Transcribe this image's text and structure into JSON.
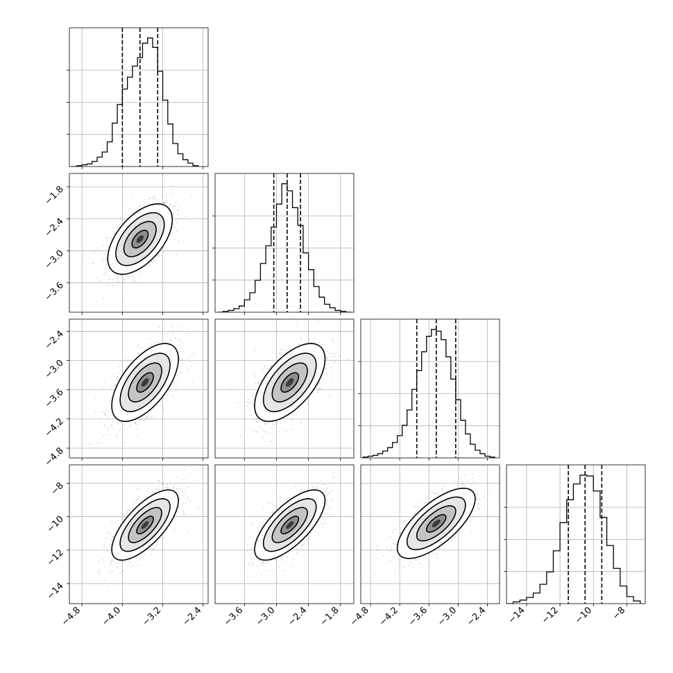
{
  "chart_data": {
    "type": "corner",
    "title": "",
    "parameters": [
      "",
      "",
      "",
      ""
    ],
    "ranges": [
      [
        -5.05,
        -2.3
      ],
      [
        -4.15,
        -1.55
      ],
      [
        -5.0,
        -2.15
      ],
      [
        -15.2,
        -6.9
      ]
    ],
    "ticks": [
      [
        -4.8,
        -4.0,
        -3.2,
        -2.4
      ],
      [
        -3.6,
        -3.0,
        -2.4,
        -1.8
      ],
      [
        -4.8,
        -4.2,
        -3.6,
        -3.0,
        -2.4
      ],
      [
        -14,
        -12,
        -10,
        -8
      ]
    ],
    "tick_labels": [
      [
        "−4.8",
        "−4.0",
        "−3.2",
        "−2.4"
      ],
      [
        "−3.6",
        "−3.0",
        "−2.4",
        "−1.8"
      ],
      [
        "−4.8",
        "−4.2",
        "−3.6",
        "−3.0",
        "−2.4"
      ],
      [
        "−14",
        "−12",
        "−10",
        "−8"
      ]
    ],
    "quantiles": [
      [
        -4.0,
        -3.65,
        -3.3
      ],
      [
        -3.05,
        -2.8,
        -2.55
      ],
      [
        -3.85,
        -3.45,
        -3.05
      ],
      [
        -11.5,
        -10.5,
        -9.5
      ]
    ],
    "histograms": [
      {
        "x": [
          -4.95,
          -4.85,
          -4.75,
          -4.65,
          -4.55,
          -4.45,
          -4.35,
          -4.25,
          -4.15,
          -4.05,
          -3.95,
          -3.85,
          -3.75,
          -3.65,
          -3.55,
          -3.45,
          -3.35,
          -3.25,
          -3.15,
          -3.05,
          -2.95,
          -2.85,
          -2.75,
          -2.65,
          -2.55
        ],
        "counts": [
          0,
          1,
          2,
          3,
          6,
          11,
          17,
          29,
          51,
          73,
          91,
          105,
          118,
          128,
          145,
          151,
          140,
          112,
          78,
          50,
          27,
          15,
          8,
          4,
          1
        ]
      },
      {
        "x": [
          -4.05,
          -3.95,
          -3.85,
          -3.75,
          -3.65,
          -3.55,
          -3.45,
          -3.35,
          -3.25,
          -3.15,
          -3.05,
          -2.95,
          -2.85,
          -2.75,
          -2.65,
          -2.55,
          -2.45,
          -2.35,
          -2.25,
          -2.15,
          -2.05,
          -1.95,
          -1.85,
          -1.75,
          -1.65
        ],
        "counts": [
          0,
          1,
          2,
          4,
          7,
          14,
          22,
          36,
          55,
          75,
          96,
          122,
          145,
          137,
          118,
          98,
          67,
          48,
          29,
          17,
          9,
          5,
          2,
          1,
          0
        ]
      },
      {
        "x": [
          -4.9,
          -4.8,
          -4.7,
          -4.6,
          -4.5,
          -4.4,
          -4.3,
          -4.2,
          -4.1,
          -4.0,
          -3.9,
          -3.8,
          -3.7,
          -3.6,
          -3.5,
          -3.4,
          -3.3,
          -3.2,
          -3.1,
          -3.0,
          -2.9,
          -2.8,
          -2.7,
          -2.6,
          -2.5,
          -2.4,
          -2.3
        ],
        "counts": [
          1,
          2,
          3,
          5,
          8,
          12,
          18,
          26,
          38,
          56,
          80,
          102,
          124,
          142,
          150,
          148,
          138,
          118,
          92,
          68,
          44,
          28,
          16,
          9,
          5,
          2,
          1
        ]
      },
      {
        "x": [
          -15.0,
          -14.6,
          -14.2,
          -13.8,
          -13.4,
          -13.0,
          -12.6,
          -12.2,
          -11.8,
          -11.4,
          -11.0,
          -10.6,
          -10.2,
          -9.8,
          -9.4,
          -9.0,
          -8.6,
          -8.2,
          -7.8,
          -7.4
        ],
        "counts": [
          0,
          2,
          4,
          7,
          12,
          22,
          36,
          60,
          92,
          118,
          136,
          146,
          145,
          128,
          98,
          66,
          40,
          20,
          8,
          3
        ]
      }
    ],
    "pairs": [
      {
        "row": 1,
        "col": 0,
        "mean": [
          -3.65,
          -2.78
        ],
        "sigma": [
          0.32,
          0.33
        ],
        "rho": 0.55
      },
      {
        "row": 2,
        "col": 0,
        "mean": [
          -3.55,
          -3.45
        ],
        "sigma": [
          0.33,
          0.4
        ],
        "rho": 0.6
      },
      {
        "row": 2,
        "col": 1,
        "mean": [
          -2.75,
          -3.45
        ],
        "sigma": [
          0.33,
          0.4
        ],
        "rho": 0.6
      },
      {
        "row": 3,
        "col": 0,
        "mean": [
          -3.55,
          -10.5
        ],
        "sigma": [
          0.33,
          1.05
        ],
        "rho": 0.7
      },
      {
        "row": 3,
        "col": 1,
        "mean": [
          -2.75,
          -10.5
        ],
        "sigma": [
          0.33,
          1.05
        ],
        "rho": 0.7
      },
      {
        "row": 3,
        "col": 2,
        "mean": [
          -3.45,
          -10.4
        ],
        "sigma": [
          0.4,
          1.05
        ],
        "rho": 0.7
      }
    ],
    "contour_levels_sigma": [
      0.5,
      1.0,
      1.5,
      2.0
    ],
    "grid": true,
    "colors": {
      "frame": "#000000",
      "grid": "#b0b0b0",
      "points": "#808080",
      "density": "#000000"
    }
  }
}
